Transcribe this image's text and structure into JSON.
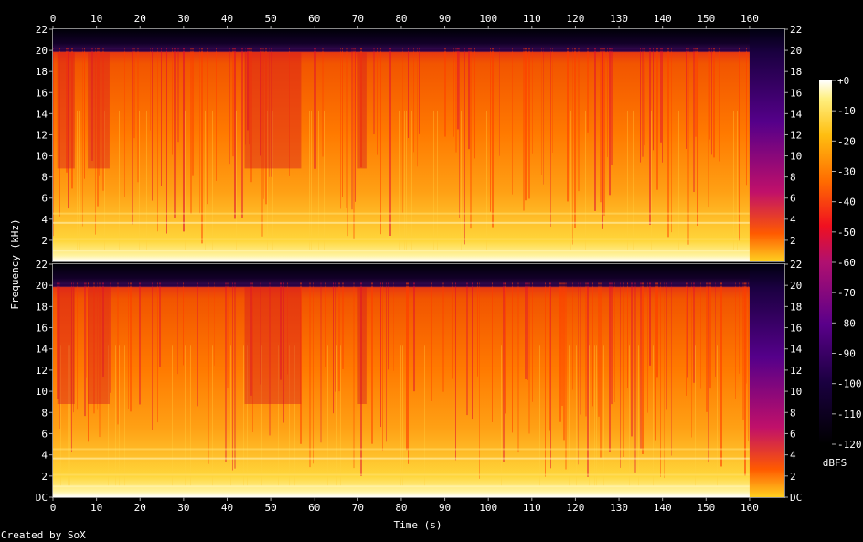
{
  "chart_data": {
    "type": "heatmap",
    "title": "",
    "xlabel": "Time (s)",
    "ylabel": "Frequency (kHz)",
    "x_ticks": [
      0,
      10,
      20,
      30,
      40,
      50,
      60,
      70,
      80,
      90,
      100,
      110,
      120,
      130,
      140,
      150,
      160
    ],
    "xlim": [
      0,
      168
    ],
    "y_ticks": [
      "DC",
      "2",
      "4",
      "6",
      "8",
      "10",
      "12",
      "14",
      "16",
      "18",
      "20",
      "22"
    ],
    "ylim": [
      0,
      22
    ],
    "channels": 2,
    "colorbar": {
      "label": "dBFS",
      "ticks": [
        "+0",
        "-10",
        "-20",
        "-30",
        "-40",
        "-50",
        "-60",
        "-70",
        "-80",
        "-90",
        "-100",
        "-110",
        "-120"
      ],
      "range": [
        -120,
        0
      ]
    },
    "spectral_cutoff_khz": 20,
    "fade_out_start_s": 160,
    "colors": [
      "#000000",
      "#1a0040",
      "#50007a",
      "#9a00a0",
      "#e01040",
      "#ff5000",
      "#ffa000",
      "#ffe030",
      "#ffffff"
    ]
  },
  "footer": {
    "credit": "Created by SoX"
  }
}
